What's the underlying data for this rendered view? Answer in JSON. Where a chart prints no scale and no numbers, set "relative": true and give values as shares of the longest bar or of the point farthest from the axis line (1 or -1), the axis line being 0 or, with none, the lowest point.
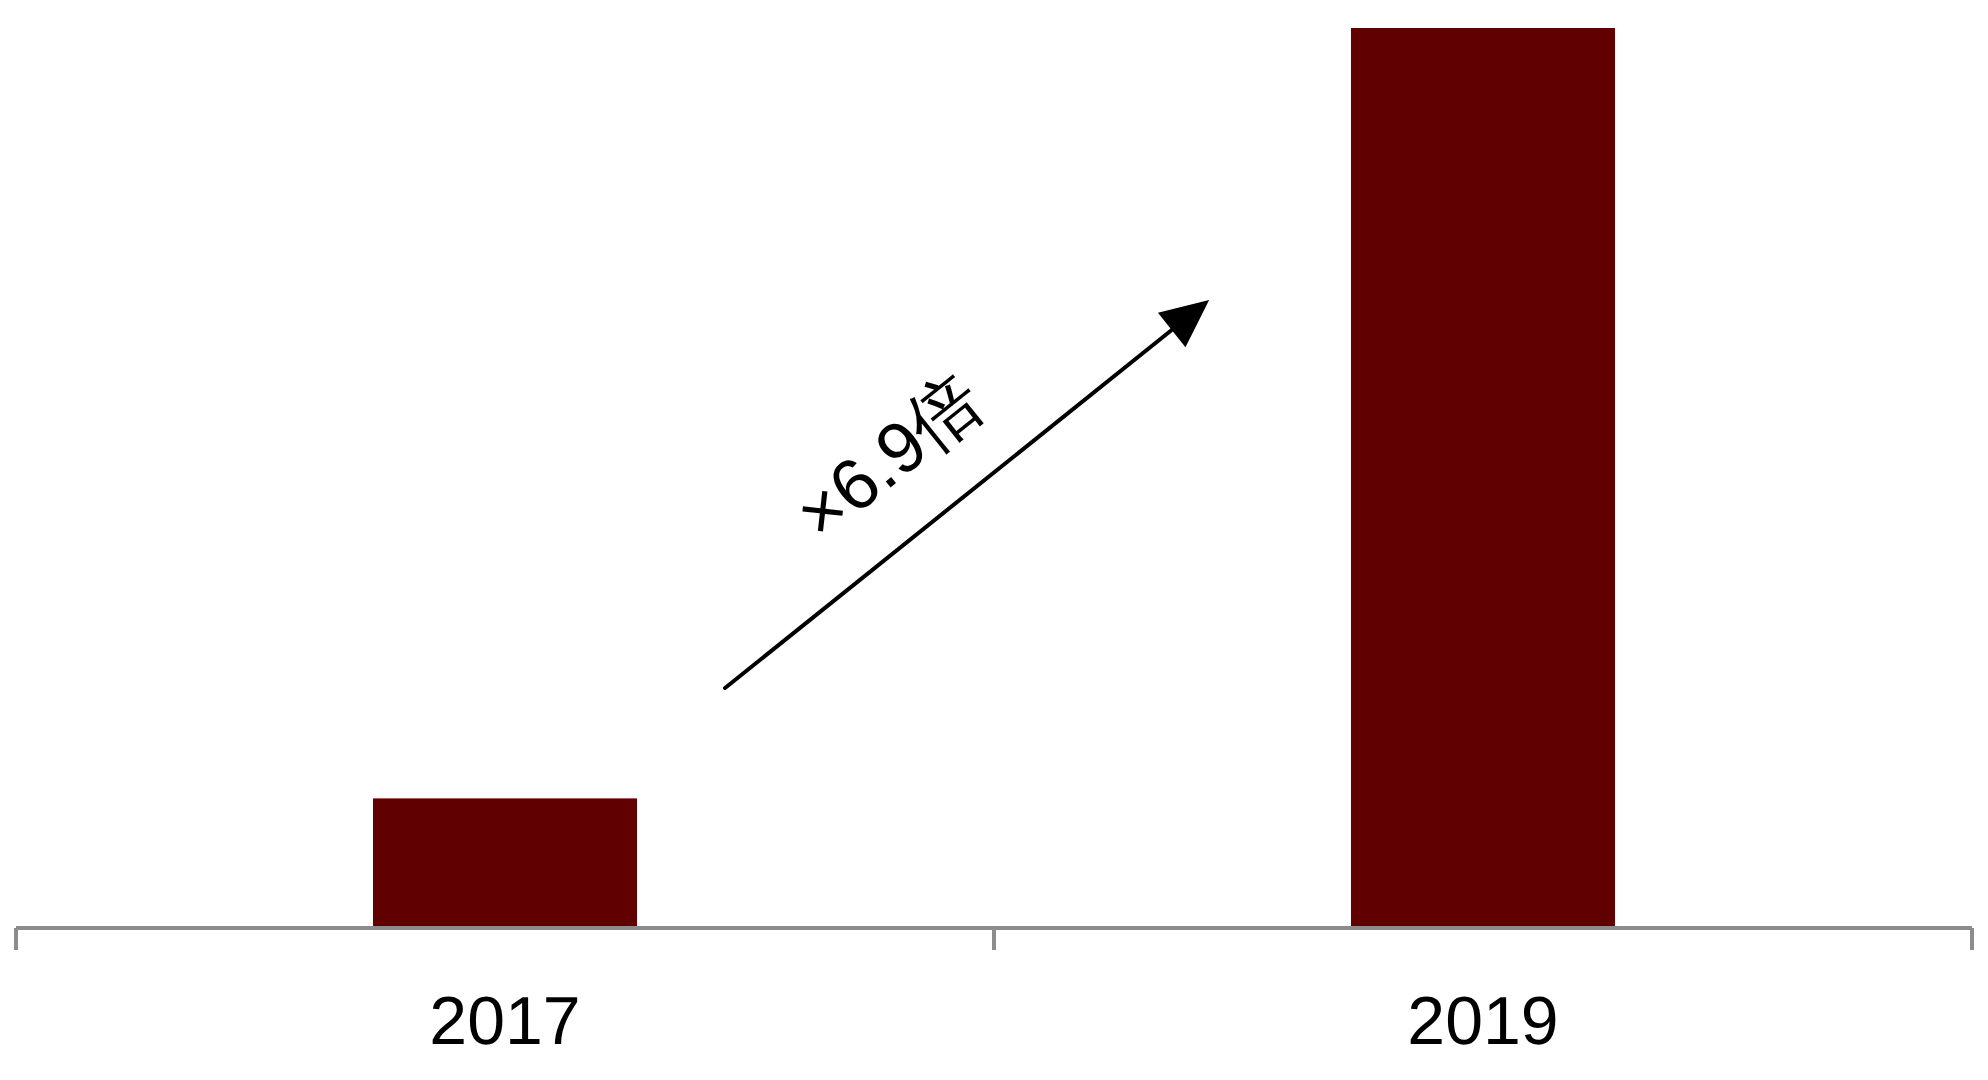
{
  "chart_data": {
    "type": "bar",
    "categories": [
      "2017",
      "2019"
    ],
    "values": [
      0.144,
      1
    ],
    "color": "#600000",
    "relative": true,
    "annotations": [
      "×6.9倍"
    ]
  }
}
